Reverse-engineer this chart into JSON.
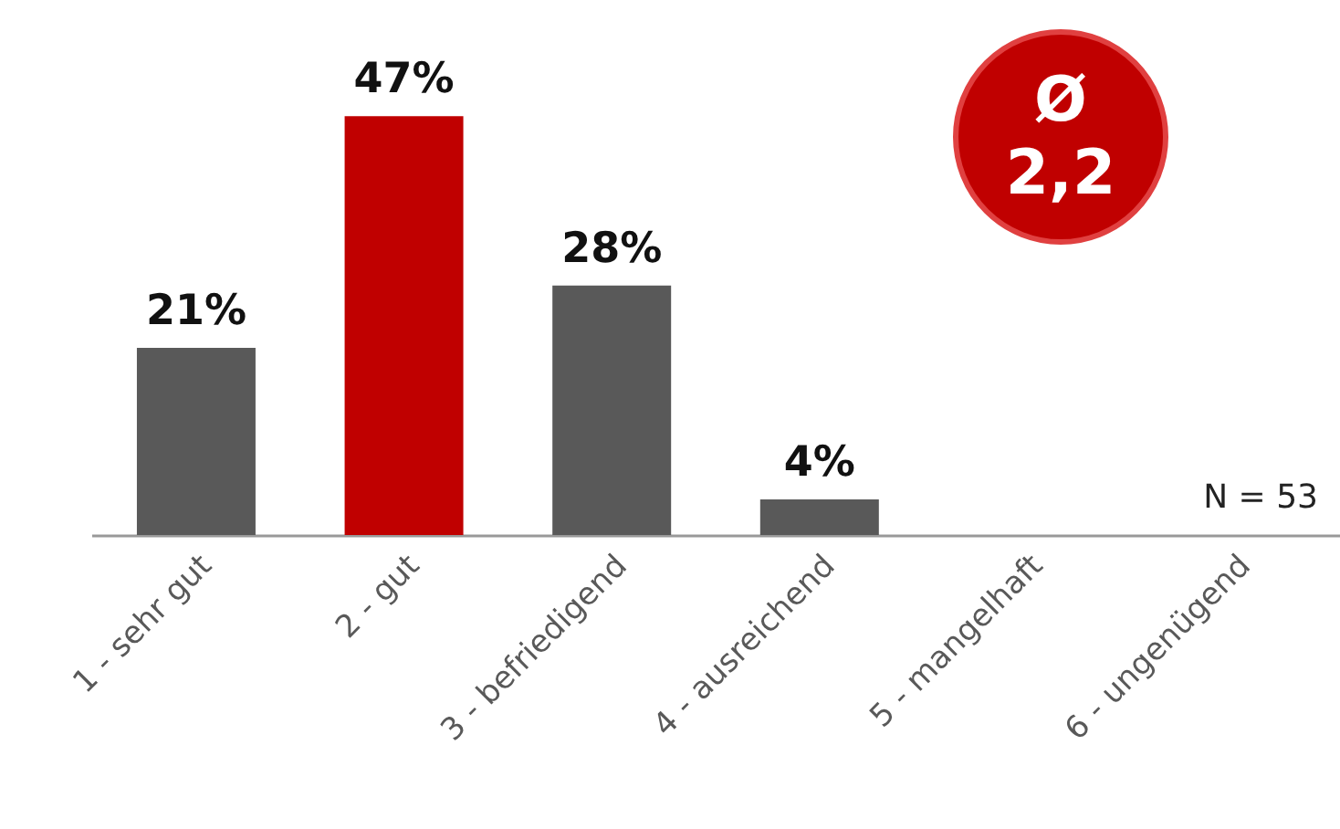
{
  "chart_data": {
    "type": "bar",
    "categories": [
      "1 - sehr gut",
      "2 - gut",
      "3 - befriedigend",
      "4 - ausreichend",
      "5 - mangelhaft",
      "6 - ungenügend"
    ],
    "values": [
      21,
      47,
      28,
      4,
      0,
      0
    ],
    "colors": [
      "#595959",
      "#c00000",
      "#595959",
      "#595959",
      "#595959",
      "#595959"
    ],
    "value_labels": [
      "21%",
      "47%",
      "28%",
      "4%",
      null,
      null
    ],
    "annotations": [
      "Ø 2,2",
      "N = 53"
    ]
  }
}
